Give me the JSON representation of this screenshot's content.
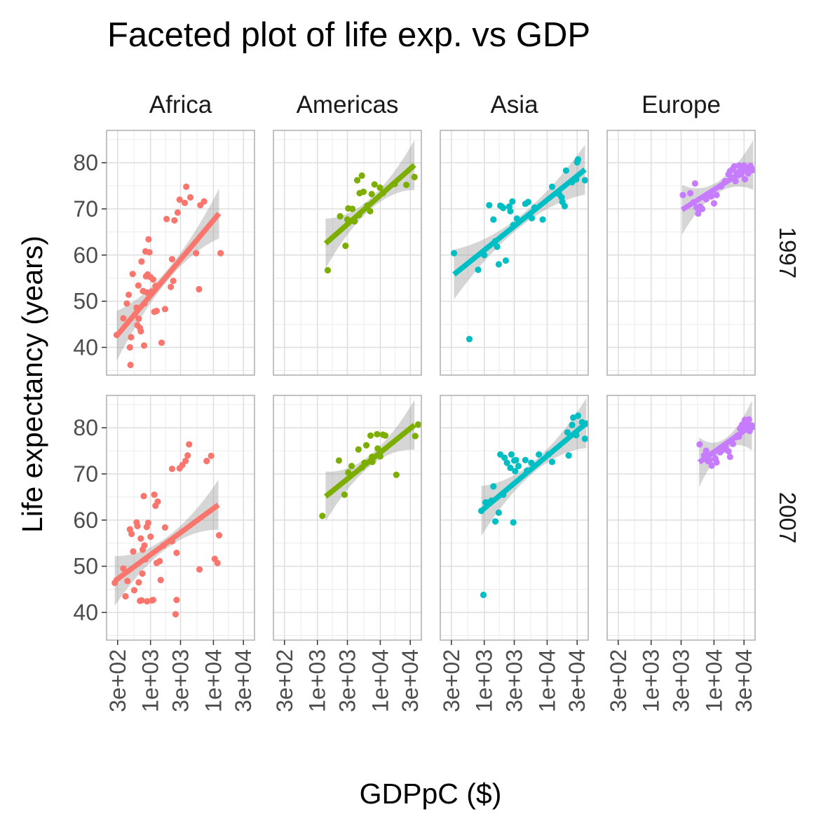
{
  "chart_data": {
    "type": "scatter",
    "title": "Faceted plot of life exp. vs GDP",
    "xlabel": "GDPpC ($)",
    "ylabel": "Life expectancy (years)",
    "x_scale": "log10",
    "xlim": [
      200,
      45000
    ],
    "ylim": [
      34,
      87
    ],
    "x_ticks": [
      300,
      1000,
      3000,
      10000,
      30000
    ],
    "x_tick_labels": [
      "3e+02",
      "1e+03",
      "3e+03",
      "1e+04",
      "3e+04"
    ],
    "y_ticks": [
      40,
      50,
      60,
      70,
      80
    ],
    "y_tick_labels": [
      "40",
      "50",
      "60",
      "70",
      "80"
    ],
    "columns": [
      "Africa",
      "Americas",
      "Asia",
      "Europe"
    ],
    "rows": [
      "1997",
      "2007"
    ],
    "colors": {
      "Africa": "#F8766D",
      "Americas": "#7CAE00",
      "Asia": "#00BFC4",
      "Europe": "#C77CFF"
    },
    "panels": [
      {
        "continent": "Africa",
        "year": "1997",
        "fit": {
          "x0": 290,
          "y0": 42.5,
          "x1": 12300,
          "y1": 69
        },
        "points": [
          [
            290,
            42.7
          ],
          [
            370,
            46.3
          ],
          [
            420,
            49.5
          ],
          [
            450,
            51.4
          ],
          [
            470,
            40
          ],
          [
            490,
            42.2
          ],
          [
            480,
            36.2
          ],
          [
            520,
            55.9
          ],
          [
            560,
            47
          ],
          [
            600,
            48.6
          ],
          [
            620,
            44.8
          ],
          [
            640,
            53.4
          ],
          [
            650,
            46.2
          ],
          [
            680,
            44.2
          ],
          [
            700,
            43.5
          ],
          [
            720,
            58.6
          ],
          [
            760,
            52.2
          ],
          [
            790,
            40.4
          ],
          [
            800,
            49.5
          ],
          [
            830,
            60.8
          ],
          [
            850,
            55.4
          ],
          [
            880,
            51.9
          ],
          [
            900,
            55.8
          ],
          [
            930,
            63.4
          ],
          [
            960,
            60.6
          ],
          [
            1000,
            55.2
          ],
          [
            1050,
            52.1
          ],
          [
            1100,
            54.7
          ],
          [
            1150,
            47.7
          ],
          [
            1200,
            53.3
          ],
          [
            1250,
            47.9
          ],
          [
            1500,
            41
          ],
          [
            1700,
            48.3
          ],
          [
            1800,
            67.8
          ],
          [
            2100,
            53.1
          ],
          [
            2200,
            59.1
          ],
          [
            2300,
            54.4
          ],
          [
            2400,
            67.5
          ],
          [
            2700,
            69.2
          ],
          [
            2900,
            72
          ],
          [
            3500,
            71.3
          ],
          [
            3700,
            74.8
          ],
          [
            4300,
            72.5
          ],
          [
            5300,
            60.4
          ],
          [
            5900,
            52.6
          ],
          [
            6200,
            70.8
          ],
          [
            7100,
            71.6
          ],
          [
            13000,
            60.4
          ]
        ]
      },
      {
        "continent": "Americas",
        "year": "1997",
        "fit": {
          "x0": 1350,
          "y0": 62.5,
          "x1": 35000,
          "y1": 79.5
        },
        "points": [
          [
            1460,
            56.7
          ],
          [
            2300,
            68.4
          ],
          [
            2800,
            62
          ],
          [
            3000,
            67.7
          ],
          [
            3100,
            70.1
          ],
          [
            3600,
            70
          ],
          [
            3900,
            67.3
          ],
          [
            4300,
            76.2
          ],
          [
            4600,
            68.7
          ],
          [
            4700,
            73.4
          ],
          [
            5100,
            77.2
          ],
          [
            5400,
            73.7
          ],
          [
            6200,
            70.7
          ],
          [
            6900,
            69.5
          ],
          [
            7300,
            73.2
          ],
          [
            8100,
            75.3
          ],
          [
            9900,
            74.6
          ],
          [
            11000,
            73.4
          ],
          [
            17000,
            75.4
          ],
          [
            26000,
            75.2
          ],
          [
            35000,
            76.9
          ]
        ]
      },
      {
        "continent": "Asia",
        "year": "1997",
        "fit": {
          "x0": 330,
          "y0": 55.8,
          "x1": 40000,
          "y1": 78.5
        },
        "points": [
          [
            330,
            60.4
          ],
          [
            580,
            41.8
          ],
          [
            800,
            56.8
          ],
          [
            1000,
            60
          ],
          [
            1200,
            70.8
          ],
          [
            1400,
            67.7
          ],
          [
            1500,
            63
          ],
          [
            1600,
            61.8
          ],
          [
            1700,
            58
          ],
          [
            1800,
            70.7
          ],
          [
            1900,
            70.5
          ],
          [
            2000,
            70.2
          ],
          [
            2200,
            58.8
          ],
          [
            2500,
            70.5
          ],
          [
            2600,
            69.5
          ],
          [
            2800,
            71.6
          ],
          [
            2900,
            66.5
          ],
          [
            3300,
            67.9
          ],
          [
            4500,
            71.1
          ],
          [
            5000,
            71.5
          ],
          [
            5700,
            68
          ],
          [
            6300,
            70.3
          ],
          [
            8500,
            67.7
          ],
          [
            12000,
            74.8
          ],
          [
            15500,
            73.2
          ],
          [
            17500,
            71.5
          ],
          [
            17000,
            72.5
          ],
          [
            19000,
            70.6
          ],
          [
            20000,
            78.3
          ],
          [
            25000,
            75.8
          ],
          [
            29000,
            76.4
          ],
          [
            30000,
            80.1
          ],
          [
            31000,
            80.7
          ],
          [
            40000,
            76.2
          ]
        ]
      },
      {
        "continent": "Europe",
        "year": "1997",
        "fit": {
          "x0": 3100,
          "y0": 69.8,
          "x1": 42000,
          "y1": 79.5
        },
        "points": [
          [
            3200,
            73
          ],
          [
            4200,
            73.4
          ],
          [
            4700,
            71.4
          ],
          [
            5000,
            75.5
          ],
          [
            5300,
            70.3
          ],
          [
            5600,
            69
          ],
          [
            5800,
            69.8
          ],
          [
            6000,
            70.5
          ],
          [
            6500,
            70
          ],
          [
            7500,
            72.1
          ],
          [
            9000,
            72.7
          ],
          [
            10000,
            71.2
          ],
          [
            11000,
            73
          ],
          [
            13000,
            74.9
          ],
          [
            15000,
            76
          ],
          [
            17000,
            77.5
          ],
          [
            18000,
            78.2
          ],
          [
            19000,
            76.8
          ],
          [
            20000,
            78.7
          ],
          [
            21000,
            79.2
          ],
          [
            22000,
            76
          ],
          [
            23000,
            77.8
          ],
          [
            24000,
            77.3
          ],
          [
            25000,
            79.4
          ],
          [
            26000,
            78.2
          ],
          [
            27000,
            77.5
          ],
          [
            28000,
            78.8
          ],
          [
            29000,
            78.3
          ],
          [
            30000,
            79.4
          ],
          [
            31000,
            76.4
          ],
          [
            33000,
            78.8
          ],
          [
            35000,
            77.7
          ],
          [
            38000,
            79.3
          ],
          [
            41000,
            78.4
          ]
        ]
      },
      {
        "continent": "Africa",
        "year": "2007",
        "fit": {
          "x0": 270,
          "y0": 46.8,
          "x1": 12000,
          "y1": 63.3
        },
        "points": [
          [
            270,
            46.4
          ],
          [
            370,
            49.5
          ],
          [
            400,
            43.5
          ],
          [
            430,
            46.8
          ],
          [
            470,
            58
          ],
          [
            500,
            57
          ],
          [
            530,
            53.2
          ],
          [
            550,
            44.8
          ],
          [
            600,
            59.5
          ],
          [
            620,
            58.7
          ],
          [
            650,
            46.5
          ],
          [
            680,
            42.5
          ],
          [
            700,
            56
          ],
          [
            720,
            42.6
          ],
          [
            740,
            48.4
          ],
          [
            750,
            53.6
          ],
          [
            780,
            65.2
          ],
          [
            800,
            54.5
          ],
          [
            830,
            51.5
          ],
          [
            870,
            58.5
          ],
          [
            880,
            42.4
          ],
          [
            920,
            59.4
          ],
          [
            1000,
            56.4
          ],
          [
            1050,
            42.6
          ],
          [
            1100,
            42.7
          ],
          [
            1150,
            65.5
          ],
          [
            1200,
            63.1
          ],
          [
            1250,
            50.7
          ],
          [
            1300,
            64
          ],
          [
            1400,
            51.1
          ],
          [
            1450,
            47
          ],
          [
            1600,
            54.5
          ],
          [
            1700,
            58.4
          ],
          [
            2200,
            71.1
          ],
          [
            2200,
            55.4
          ],
          [
            2500,
            39.6
          ],
          [
            2600,
            42.7
          ],
          [
            2600,
            52.9
          ],
          [
            2900,
            71.2
          ],
          [
            3200,
            71.9
          ],
          [
            3600,
            72.8
          ],
          [
            4100,
            76.4
          ],
          [
            3900,
            74
          ],
          [
            6000,
            49.3
          ],
          [
            7800,
            72.8
          ],
          [
            9200,
            73.9
          ],
          [
            10500,
            51.6
          ],
          [
            11600,
            50.7
          ],
          [
            12300,
            56.7
          ]
        ]
      },
      {
        "continent": "Americas",
        "year": "2007",
        "fit": {
          "x0": 1350,
          "y0": 65.1,
          "x1": 35000,
          "y1": 80.6
        },
        "points": [
          [
            1200,
            60.9
          ],
          [
            2200,
            72.9
          ],
          [
            2700,
            65.5
          ],
          [
            3100,
            70.3
          ],
          [
            3500,
            71.7
          ],
          [
            4500,
            75.3
          ],
          [
            5100,
            71.4
          ],
          [
            5600,
            72.4
          ],
          [
            6000,
            76.2
          ],
          [
            7000,
            78.3
          ],
          [
            7400,
            73.7
          ],
          [
            7500,
            72.6
          ],
          [
            8900,
            78.6
          ],
          [
            9100,
            75.5
          ],
          [
            10000,
            73.8
          ],
          [
            11000,
            78.5
          ],
          [
            12000,
            78.3
          ],
          [
            18000,
            69.8
          ],
          [
            36000,
            78.2
          ],
          [
            40000,
            80.7
          ]
        ]
      },
      {
        "continent": "Asia",
        "year": "2007",
        "fit": {
          "x0": 900,
          "y0": 62,
          "x1": 42000,
          "y1": 81
        },
        "points": [
          [
            900,
            62
          ],
          [
            970,
            43.8
          ],
          [
            1050,
            63.8
          ],
          [
            1090,
            63.8
          ],
          [
            1300,
            64.2
          ],
          [
            1400,
            67.3
          ],
          [
            1500,
            59.7
          ],
          [
            1700,
            61.6
          ],
          [
            1800,
            74.2
          ],
          [
            2000,
            65.5
          ],
          [
            2100,
            73.5
          ],
          [
            2300,
            72.4
          ],
          [
            2600,
            71.3
          ],
          [
            2700,
            74.2
          ],
          [
            3000,
            72.9
          ],
          [
            2900,
            59.5
          ],
          [
            3100,
            70.6
          ],
          [
            3200,
            73
          ],
          [
            3500,
            71.7
          ],
          [
            4500,
            73
          ],
          [
            4800,
            70.7
          ],
          [
            5600,
            72.4
          ],
          [
            7400,
            74.2
          ],
          [
            10500,
            74.2
          ],
          [
            12000,
            72.6
          ],
          [
            21000,
            79
          ],
          [
            22000,
            74
          ],
          [
            25000,
            80.6
          ],
          [
            26000,
            82.2
          ],
          [
            29000,
            78.4
          ],
          [
            31000,
            82.6
          ],
          [
            36000,
            81.2
          ],
          [
            40000,
            77.6
          ],
          [
            42000,
            80.9
          ]
        ]
      },
      {
        "continent": "Europe",
        "year": "2007",
        "fit": {
          "x0": 5800,
          "y0": 72.5,
          "x1": 40000,
          "y1": 80.5
        },
        "points": [
          [
            5900,
            76.4
          ],
          [
            7000,
            74
          ],
          [
            7500,
            75
          ],
          [
            8000,
            72.8
          ],
          [
            8500,
            73
          ],
          [
            9200,
            71.8
          ],
          [
            9800,
            74.5
          ],
          [
            10500,
            73.3
          ],
          [
            11000,
            72.5
          ],
          [
            12600,
            74.7
          ],
          [
            14600,
            75.3
          ],
          [
            15400,
            75.7
          ],
          [
            17000,
            74.9
          ],
          [
            18000,
            73.7
          ],
          [
            20000,
            76.5
          ],
          [
            22000,
            77.9
          ],
          [
            23500,
            78.3
          ],
          [
            25000,
            78.1
          ],
          [
            26000,
            79.8
          ],
          [
            28000,
            80.6
          ],
          [
            29000,
            79.4
          ],
          [
            30000,
            80.5
          ],
          [
            31000,
            81.7
          ],
          [
            32000,
            79.8
          ],
          [
            33000,
            80.9
          ],
          [
            34000,
            81
          ],
          [
            35000,
            80.2
          ],
          [
            36000,
            81.8
          ],
          [
            37000,
            79.3
          ],
          [
            40000,
            80.5
          ],
          [
            42000,
            80.2
          ],
          [
            49000,
            80.1
          ]
        ]
      }
    ]
  }
}
